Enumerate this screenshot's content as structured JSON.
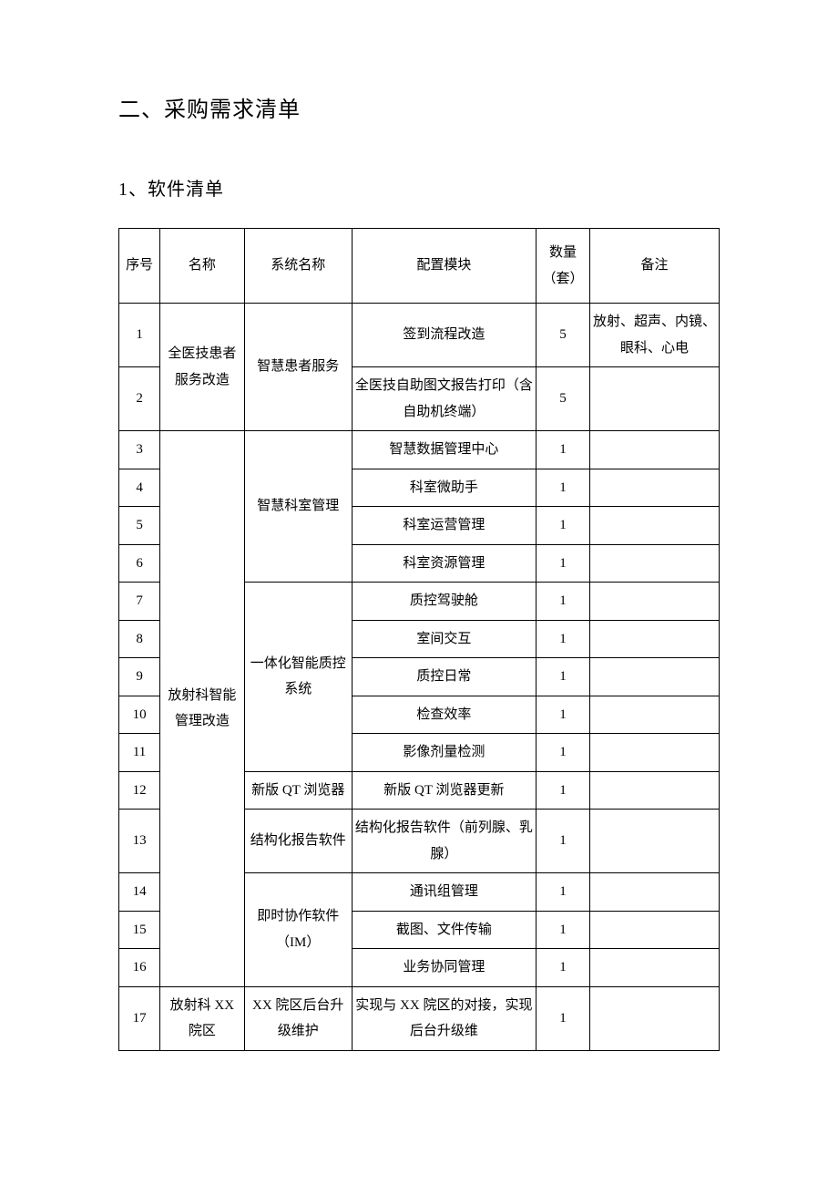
{
  "heading": "二、采购需求清单",
  "subheading": "1、软件清单",
  "columns": {
    "seq": "序号",
    "name": "名称",
    "sys": "系统名称",
    "mod": "配置模块",
    "qty": "数量（套）",
    "note": "备注"
  },
  "groups": [
    {
      "name": "全医技患者服务改造",
      "systems": [
        {
          "sys": "智慧患者服务",
          "rows": [
            {
              "seq": "1",
              "mod": "签到流程改造",
              "qty": "5",
              "note": "放射、超声、内镜、眼科、心电"
            },
            {
              "seq": "2",
              "mod": "全医技自助图文报告打印（含自助机终端）",
              "qty": "5",
              "note": ""
            }
          ]
        }
      ]
    },
    {
      "name": "放射科智能管理改造",
      "systems": [
        {
          "sys": "智慧科室管理",
          "rows": [
            {
              "seq": "3",
              "mod": "智慧数据管理中心",
              "qty": "1",
              "note": ""
            },
            {
              "seq": "4",
              "mod": "科室微助手",
              "qty": "1",
              "note": ""
            },
            {
              "seq": "5",
              "mod": "科室运营管理",
              "qty": "1",
              "note": ""
            },
            {
              "seq": "6",
              "mod": "科室资源管理",
              "qty": "1",
              "note": ""
            }
          ]
        },
        {
          "sys": "一体化智能质控系统",
          "rows": [
            {
              "seq": "7",
              "mod": "质控驾驶舱",
              "qty": "1",
              "note": ""
            },
            {
              "seq": "8",
              "mod": "室间交互",
              "qty": "1",
              "note": ""
            },
            {
              "seq": "9",
              "mod": "质控日常",
              "qty": "1",
              "note": ""
            },
            {
              "seq": "10",
              "mod": "检查效率",
              "qty": "1",
              "note": ""
            },
            {
              "seq": "11",
              "mod": "影像剂量检测",
              "qty": "1",
              "note": ""
            }
          ]
        },
        {
          "sys": "新版 QT 浏览器",
          "rows": [
            {
              "seq": "12",
              "mod": "新版 QT 浏览器更新",
              "qty": "1",
              "note": ""
            }
          ]
        },
        {
          "sys": "结构化报告软件",
          "rows": [
            {
              "seq": "13",
              "mod": "结构化报告软件（前列腺、乳腺）",
              "qty": "1",
              "note": ""
            }
          ]
        },
        {
          "sys": "即时协作软件（IM）",
          "rows": [
            {
              "seq": "14",
              "mod": "通讯组管理",
              "qty": "1",
              "note": ""
            },
            {
              "seq": "15",
              "mod": "截图、文件传输",
              "qty": "1",
              "note": ""
            },
            {
              "seq": "16",
              "mod": "业务协同管理",
              "qty": "1",
              "note": ""
            }
          ]
        }
      ]
    },
    {
      "name": "放射科 XX 院区",
      "systems": [
        {
          "sys": "XX 院区后台升级维护",
          "rows": [
            {
              "seq": "17",
              "mod": "实现与 XX 院区的对接，实现后台升级维",
              "qty": "1",
              "note": ""
            }
          ]
        }
      ]
    }
  ]
}
